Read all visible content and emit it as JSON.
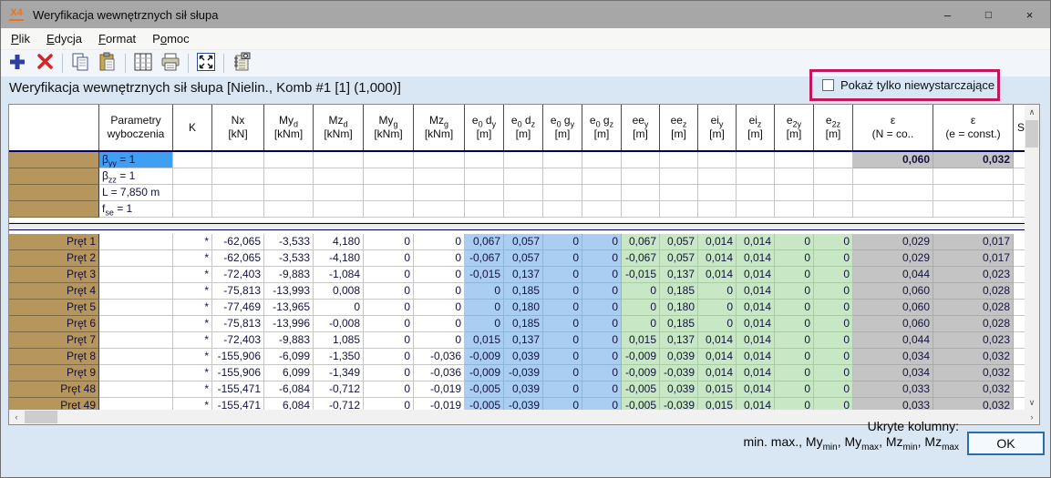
{
  "window": {
    "title": "Weryfikacja wewnętrznych sił słupa",
    "icon": "X4",
    "minimize": "–",
    "maximize": "□",
    "close": "×"
  },
  "menu": {
    "items": [
      {
        "label": "Plik",
        "underline": 0
      },
      {
        "label": "Edycja",
        "underline": 0
      },
      {
        "label": "Format",
        "underline": 0
      },
      {
        "label": "Pomoc",
        "underline": 1
      }
    ]
  },
  "toolbar": {
    "icons": [
      "add",
      "delete",
      "copy",
      "paste",
      "table-columns",
      "print",
      "fit-view",
      "report"
    ],
    "groups": [
      [
        "add",
        "delete"
      ],
      [
        "copy",
        "paste"
      ],
      [
        "table-columns",
        "print"
      ],
      [
        "fit-view"
      ],
      [
        "report"
      ]
    ]
  },
  "subtitle": "Weryfikacja wewnętrznych sił słupa [Nielin., Komb #1 [1] (1,000)]",
  "filter": {
    "label": "Pokaż tylko niewystarczające",
    "checked": false,
    "highlight_color": "#C2185B"
  },
  "colors": {
    "blue_cell": "#A9CEF2",
    "green_cell": "#C8E7C4",
    "gray_cell": "#C4C4C4",
    "row_header_brown": "#B6965C",
    "selected_cell": "#3F9FF2",
    "header_rule_navy": "#00005E"
  },
  "scrollbars": {
    "up": "∧",
    "down": "∨",
    "left": "‹",
    "right": "›"
  },
  "table": {
    "columns": [
      {
        "id": "rowheader",
        "width": 99,
        "bg": "white",
        "l1": [],
        "l2": ""
      },
      {
        "id": "param",
        "width": 81,
        "bg": "white",
        "l1": [
          {
            "t": "Parametry"
          }
        ],
        "l2": "wyboczenia"
      },
      {
        "id": "k",
        "width": 43,
        "bg": "white",
        "l1": [
          {
            "t": "K"
          }
        ],
        "l2": ""
      },
      {
        "id": "nx",
        "width": 57,
        "bg": "white",
        "l1": [
          {
            "t": "Nx"
          }
        ],
        "l2": "[kN]"
      },
      {
        "id": "myd",
        "width": 54,
        "bg": "white",
        "l1": [
          {
            "t": "My"
          },
          {
            "s": "d"
          }
        ],
        "l2": "[kNm]"
      },
      {
        "id": "mzd",
        "width": 55,
        "bg": "white",
        "l1": [
          {
            "t": "Mz"
          },
          {
            "s": "d"
          }
        ],
        "l2": "[kNm]"
      },
      {
        "id": "myg",
        "width": 55,
        "bg": "white",
        "l1": [
          {
            "t": "My"
          },
          {
            "s": "g"
          }
        ],
        "l2": "[kNm]"
      },
      {
        "id": "mzg",
        "width": 56,
        "bg": "white",
        "l1": [
          {
            "t": "Mz"
          },
          {
            "s": "g"
          }
        ],
        "l2": "[kNm]"
      },
      {
        "id": "e0dy",
        "width": 43,
        "bg": "blue",
        "l1": [
          {
            "t": "e"
          },
          {
            "s": "0"
          },
          {
            "t": " d"
          },
          {
            "s": "y"
          }
        ],
        "l2": "[m]"
      },
      {
        "id": "e0dz",
        "width": 43,
        "bg": "blue",
        "l1": [
          {
            "t": "e"
          },
          {
            "s": "0"
          },
          {
            "t": " d"
          },
          {
            "s": "z"
          }
        ],
        "l2": "[m]"
      },
      {
        "id": "e0gy",
        "width": 43,
        "bg": "blue",
        "l1": [
          {
            "t": "e"
          },
          {
            "s": "0"
          },
          {
            "t": " g"
          },
          {
            "s": "y"
          }
        ],
        "l2": "[m]"
      },
      {
        "id": "e0gz",
        "width": 43,
        "bg": "blue",
        "l1": [
          {
            "t": "e"
          },
          {
            "s": "0"
          },
          {
            "t": " g"
          },
          {
            "s": "z"
          }
        ],
        "l2": "[m]"
      },
      {
        "id": "eey",
        "width": 42,
        "bg": "green",
        "l1": [
          {
            "t": "ee"
          },
          {
            "s": "y"
          }
        ],
        "l2": "[m]"
      },
      {
        "id": "eez",
        "width": 42,
        "bg": "green",
        "l1": [
          {
            "t": "ee"
          },
          {
            "s": "z"
          }
        ],
        "l2": "[m]"
      },
      {
        "id": "eiy",
        "width": 42,
        "bg": "green",
        "l1": [
          {
            "t": "ei"
          },
          {
            "s": "y"
          }
        ],
        "l2": "[m]"
      },
      {
        "id": "eiz",
        "width": 42,
        "bg": "green",
        "l1": [
          {
            "t": "ei"
          },
          {
            "s": "z"
          }
        ],
        "l2": "[m]"
      },
      {
        "id": "e2y",
        "width": 43,
        "bg": "green",
        "l1": [
          {
            "t": "e"
          },
          {
            "s": "2y"
          }
        ],
        "l2": "[m]"
      },
      {
        "id": "e2z",
        "width": 43,
        "bg": "green",
        "l1": [
          {
            "t": "e"
          },
          {
            "s": "2z"
          }
        ],
        "l2": "[m]"
      },
      {
        "id": "eps_n",
        "width": 88,
        "bg": "gray",
        "l1": [
          {
            "t": "ε"
          }
        ],
        "l2": "(N = co.."
      },
      {
        "id": "eps_e",
        "width": 88,
        "bg": "gray",
        "l1": [
          {
            "t": "ε"
          }
        ],
        "l2": "(e = const.)"
      },
      {
        "id": "s",
        "width": 17,
        "bg": "white",
        "l1": [
          {
            "t": "S"
          }
        ],
        "l2": ""
      }
    ],
    "param_rows": [
      {
        "label": [
          {
            "t": "β"
          },
          {
            "s": "yy"
          },
          {
            "t": " = 1"
          }
        ],
        "selected": true,
        "eps_n": "0,060",
        "eps_e": "0,032"
      },
      {
        "label": [
          {
            "t": "β"
          },
          {
            "s": "zz"
          },
          {
            "t": " = 1"
          }
        ]
      },
      {
        "label": [
          {
            "t": "L = 7,850 m"
          }
        ]
      },
      {
        "label": [
          {
            "t": "f"
          },
          {
            "s": "se"
          },
          {
            "t": " = 1"
          }
        ]
      }
    ],
    "rows": [
      {
        "name": "Pręt 1",
        "k": "*",
        "values": [
          "-62,065",
          "-3,533",
          "4,180",
          "0",
          "0",
          "0,067",
          "0,057",
          "0",
          "0",
          "0,067",
          "0,057",
          "0,014",
          "0,014",
          "0",
          "0",
          "0,029",
          "0,017"
        ]
      },
      {
        "name": "Pręt 2",
        "k": "*",
        "values": [
          "-62,065",
          "-3,533",
          "-4,180",
          "0",
          "0",
          "-0,067",
          "0,057",
          "0",
          "0",
          "-0,067",
          "0,057",
          "0,014",
          "0,014",
          "0",
          "0",
          "0,029",
          "0,017"
        ]
      },
      {
        "name": "Pręt 3",
        "k": "*",
        "values": [
          "-72,403",
          "-9,883",
          "-1,084",
          "0",
          "0",
          "-0,015",
          "0,137",
          "0",
          "0",
          "-0,015",
          "0,137",
          "0,014",
          "0,014",
          "0",
          "0",
          "0,044",
          "0,023"
        ]
      },
      {
        "name": "Pręt 4",
        "k": "*",
        "values": [
          "-75,813",
          "-13,993",
          "0,008",
          "0",
          "0",
          "0",
          "0,185",
          "0",
          "0",
          "0",
          "0,185",
          "0",
          "0,014",
          "0",
          "0",
          "0,060",
          "0,028"
        ]
      },
      {
        "name": "Pręt 5",
        "k": "*",
        "values": [
          "-77,469",
          "-13,965",
          "0",
          "0",
          "0",
          "0",
          "0,180",
          "0",
          "0",
          "0",
          "0,180",
          "0",
          "0,014",
          "0",
          "0",
          "0,060",
          "0,028"
        ]
      },
      {
        "name": "Pręt 6",
        "k": "*",
        "values": [
          "-75,813",
          "-13,996",
          "-0,008",
          "0",
          "0",
          "0",
          "0,185",
          "0",
          "0",
          "0",
          "0,185",
          "0",
          "0,014",
          "0",
          "0",
          "0,060",
          "0,028"
        ]
      },
      {
        "name": "Pręt 7",
        "k": "*",
        "values": [
          "-72,403",
          "-9,883",
          "1,085",
          "0",
          "0",
          "0,015",
          "0,137",
          "0",
          "0",
          "0,015",
          "0,137",
          "0,014",
          "0,014",
          "0",
          "0",
          "0,044",
          "0,023"
        ]
      },
      {
        "name": "Pręt 8",
        "k": "*",
        "values": [
          "-155,906",
          "-6,099",
          "-1,350",
          "0",
          "-0,036",
          "-0,009",
          "0,039",
          "0",
          "0",
          "-0,009",
          "0,039",
          "0,014",
          "0,014",
          "0",
          "0",
          "0,034",
          "0,032"
        ]
      },
      {
        "name": "Pręt 9",
        "k": "*",
        "values": [
          "-155,906",
          "6,099",
          "-1,349",
          "0",
          "-0,036",
          "-0,009",
          "-0,039",
          "0",
          "0",
          "-0,009",
          "-0,039",
          "0,014",
          "0,014",
          "0",
          "0",
          "0,034",
          "0,032"
        ]
      },
      {
        "name": "Pręt 48",
        "k": "*",
        "values": [
          "-155,471",
          "-6,084",
          "-0,712",
          "0",
          "-0,019",
          "-0,005",
          "0,039",
          "0",
          "0",
          "-0,005",
          "0,039",
          "0,015",
          "0,014",
          "0",
          "0",
          "0,033",
          "0,032"
        ]
      },
      {
        "name": "Pręt 49",
        "k": "*",
        "values": [
          "-155,471",
          "6,084",
          "-0,712",
          "0",
          "-0,019",
          "-0,005",
          "-0,039",
          "0",
          "0",
          "-0,005",
          "-0,039",
          "0,015",
          "0,014",
          "0",
          "0",
          "0,033",
          "0,032"
        ]
      }
    ]
  },
  "footer": {
    "hidden_label": "Ukryte kolumny:",
    "hidden_cols": [
      {
        "t": "min. max., My"
      },
      {
        "s": "min"
      },
      {
        "t": ", My"
      },
      {
        "s": "max"
      },
      {
        "t": ", Mz"
      },
      {
        "s": "min"
      },
      {
        "t": ", Mz"
      },
      {
        "s": "max"
      }
    ],
    "ok": "OK"
  }
}
